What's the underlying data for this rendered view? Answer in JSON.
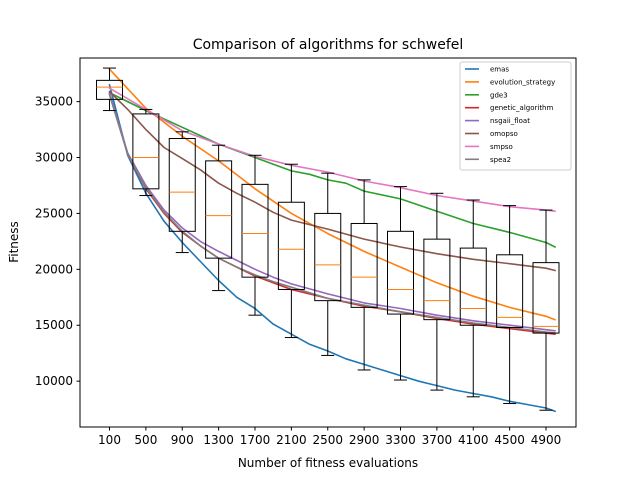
{
  "chart_data": {
    "type": "line",
    "title": "Comparison of algorithms for schwefel",
    "xlabel": "Number of fitness evaluations",
    "ylabel": "Fitness",
    "ylim": [
      5900,
      38900
    ],
    "yticks": [
      10000,
      15000,
      20000,
      25000,
      30000,
      35000
    ],
    "ytick_labels": [
      "10000",
      "15000",
      "20000",
      "25000",
      "30000",
      "35000"
    ],
    "box_positions": [
      100,
      500,
      900,
      1300,
      1700,
      2100,
      2500,
      2900,
      3300,
      3700,
      4100,
      4500,
      4900
    ],
    "box_labels": [
      "100",
      "500",
      "900",
      "1300",
      "1700",
      "2100",
      "2500",
      "2900",
      "3300",
      "3700",
      "4100",
      "4500",
      "4900"
    ],
    "grid": false,
    "legend_position": "upper right",
    "series": [
      {
        "name": "emas",
        "color": "#1f77b4",
        "x": [
          100,
          300,
          500,
          700,
          900,
          1100,
          1300,
          1500,
          1700,
          1900,
          2100,
          2300,
          2500,
          2700,
          2900,
          3100,
          3300,
          3500,
          3700,
          3900,
          4100,
          4300,
          4500,
          4700,
          4900,
          5000
        ],
        "y": [
          36500,
          30200,
          26800,
          24300,
          22400,
          20700,
          19000,
          17500,
          16500,
          15100,
          14200,
          13300,
          12700,
          12000,
          11500,
          11000,
          10500,
          10000,
          9600,
          9200,
          8900,
          8600,
          8200,
          7900,
          7600,
          7300
        ]
      },
      {
        "name": "evolution_strategy",
        "color": "#ff7f0e",
        "x": [
          100,
          500,
          900,
          1300,
          1700,
          2100,
          2500,
          2900,
          3300,
          3700,
          4100,
          4500,
          4900,
          5000
        ],
        "y": [
          37900,
          34400,
          31900,
          29700,
          27200,
          25000,
          23200,
          21600,
          20200,
          18800,
          17600,
          16600,
          15800,
          15500
        ]
      },
      {
        "name": "gde3",
        "color": "#2ca02c",
        "x": [
          100,
          500,
          900,
          1300,
          1700,
          2100,
          2300,
          2500,
          2700,
          2900,
          3300,
          3700,
          4100,
          4500,
          4900,
          5000
        ],
        "y": [
          35800,
          34200,
          32700,
          31200,
          30000,
          28800,
          28500,
          28000,
          27700,
          27000,
          26300,
          25200,
          24100,
          23300,
          22400,
          22000
        ]
      },
      {
        "name": "genetic_algorithm",
        "color": "#d62728",
        "x": [
          100,
          300,
          500,
          700,
          900,
          1100,
          1300,
          1500,
          1700,
          1900,
          2100,
          2500,
          2900,
          3300,
          3700,
          4100,
          4500,
          4900,
          5000
        ],
        "y": [
          35700,
          30300,
          27200,
          25000,
          23300,
          22100,
          21000,
          20200,
          19400,
          18800,
          18200,
          17400,
          16700,
          16200,
          15600,
          15100,
          14700,
          14300,
          14200
        ]
      },
      {
        "name": "nsgaii_float",
        "color": "#9467bd",
        "x": [
          100,
          300,
          500,
          700,
          900,
          1100,
          1300,
          1500,
          1700,
          1900,
          2100,
          2500,
          2900,
          3300,
          3700,
          4100,
          4500,
          4900,
          5000
        ],
        "y": [
          35800,
          30400,
          27500,
          25300,
          23700,
          22500,
          21600,
          20800,
          20000,
          19300,
          18700,
          17800,
          17000,
          16500,
          15900,
          15400,
          15000,
          14600,
          14500
        ]
      },
      {
        "name": "omopso",
        "color": "#8c564b",
        "x": [
          100,
          300,
          500,
          700,
          900,
          1100,
          1300,
          1500,
          1700,
          1900,
          2100,
          2500,
          2900,
          3300,
          3700,
          4100,
          4500,
          4900,
          5000
        ],
        "y": [
          35900,
          34300,
          32500,
          30900,
          29900,
          28900,
          27700,
          26800,
          26000,
          25100,
          24400,
          23600,
          22700,
          22000,
          21400,
          20900,
          20500,
          20100,
          19900
        ]
      },
      {
        "name": "smpso",
        "color": "#e377c2",
        "x": [
          100,
          500,
          900,
          1300,
          1700,
          2100,
          2500,
          2900,
          3300,
          3700,
          4100,
          4500,
          4900,
          5000
        ],
        "y": [
          36200,
          34300,
          32400,
          31200,
          30100,
          29300,
          28700,
          27900,
          27300,
          26600,
          26100,
          25600,
          25300,
          25200
        ]
      },
      {
        "name": "spea2",
        "color": "#7f7f7f",
        "x": [
          100,
          300,
          500,
          700,
          900,
          1100,
          1300,
          1500,
          1700,
          1900,
          2100,
          2500,
          2900,
          3300,
          3700,
          4100,
          4500,
          4900,
          5000
        ],
        "y": [
          35600,
          30300,
          27300,
          25100,
          23400,
          22100,
          21000,
          20200,
          19500,
          18900,
          18400,
          17400,
          16800,
          16200,
          15700,
          15200,
          14800,
          14400,
          14300
        ]
      }
    ],
    "boxplots": [
      {
        "x": 100,
        "whislo": 34200,
        "q1": 35200,
        "med": 36300,
        "q3": 36900,
        "whishi": 38000
      },
      {
        "x": 500,
        "whislo": 26600,
        "q1": 27200,
        "med": 30000,
        "q3": 33900,
        "whishi": 34300
      },
      {
        "x": 900,
        "whislo": 21500,
        "q1": 23400,
        "med": 26900,
        "q3": 31700,
        "whishi": 32300
      },
      {
        "x": 1300,
        "whislo": 18100,
        "q1": 21000,
        "med": 24800,
        "q3": 29700,
        "whishi": 31100
      },
      {
        "x": 1700,
        "whislo": 15900,
        "q1": 19300,
        "med": 23200,
        "q3": 27600,
        "whishi": 30200
      },
      {
        "x": 2100,
        "whislo": 13900,
        "q1": 18200,
        "med": 21800,
        "q3": 26000,
        "whishi": 29400
      },
      {
        "x": 2500,
        "whislo": 12300,
        "q1": 17200,
        "med": 20400,
        "q3": 25000,
        "whishi": 28600
      },
      {
        "x": 2900,
        "whislo": 11000,
        "q1": 16600,
        "med": 19300,
        "q3": 24100,
        "whishi": 28000
      },
      {
        "x": 3300,
        "whislo": 10100,
        "q1": 16000,
        "med": 18200,
        "q3": 23400,
        "whishi": 27400
      },
      {
        "x": 3700,
        "whislo": 9200,
        "q1": 15500,
        "med": 17200,
        "q3": 22700,
        "whishi": 26800
      },
      {
        "x": 4100,
        "whislo": 8600,
        "q1": 15000,
        "med": 16500,
        "q3": 21900,
        "whishi": 26200
      },
      {
        "x": 4500,
        "whislo": 8000,
        "q1": 14800,
        "med": 15700,
        "q3": 21300,
        "whishi": 25700
      },
      {
        "x": 4900,
        "whislo": 7400,
        "q1": 14300,
        "med": 14900,
        "q3": 20600,
        "whishi": 25300
      }
    ]
  }
}
